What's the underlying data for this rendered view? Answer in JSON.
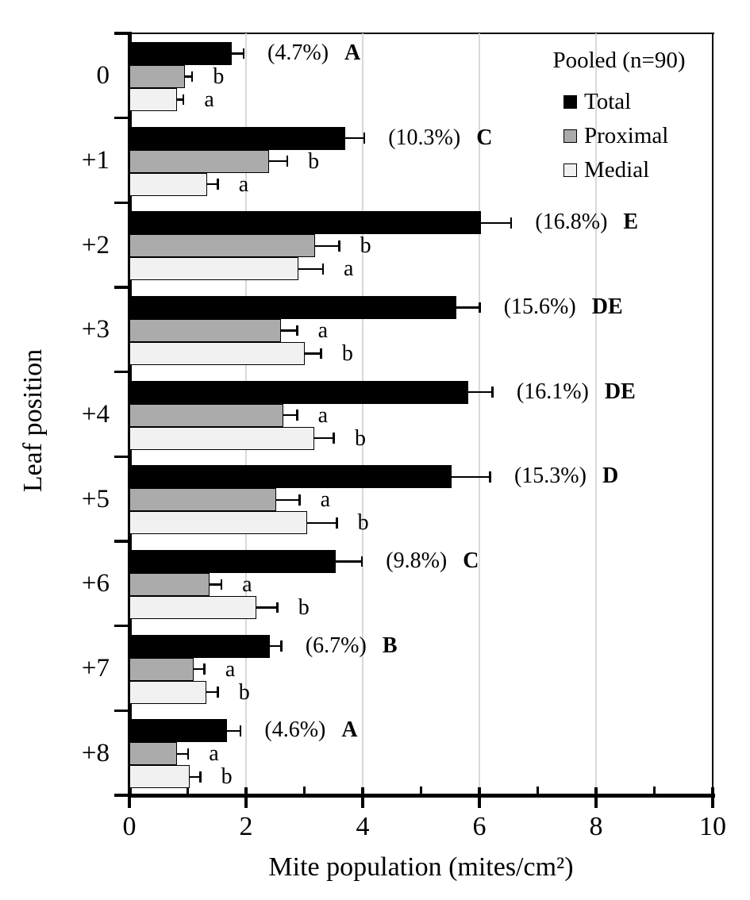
{
  "chart_data": {
    "type": "bar",
    "orientation": "horizontal",
    "xlabel": "Mite population (mites/cm²)",
    "ylabel": "Leaf position",
    "xlim": [
      0,
      10
    ],
    "xticks_major": [
      0,
      2,
      4,
      6,
      8,
      10
    ],
    "xtick_labels": [
      "0",
      "2",
      "4",
      "6",
      "8",
      "10"
    ],
    "xticks_minor": [
      1,
      3,
      5,
      7,
      9
    ],
    "gridlines_x": [
      2,
      4,
      6,
      8
    ],
    "grid_color": "#d9d9d9",
    "legend": {
      "title": "Pooled (n=90)",
      "position": "top-right",
      "entries": [
        {
          "label": "Total",
          "color": "#000000"
        },
        {
          "label": "Proximal",
          "color": "#ababab"
        },
        {
          "label": "Medial",
          "color": "#f1f1f1"
        }
      ]
    },
    "categories": [
      "0",
      "+1",
      "+2",
      "+3",
      "+4",
      "+5",
      "+6",
      "+7",
      "+8"
    ],
    "groups": [
      {
        "category": "0",
        "pct": "(4.7%)",
        "group_letter": "A",
        "bars": [
          {
            "series": "Total",
            "value": 1.76,
            "err": 0.2,
            "letter": ""
          },
          {
            "series": "Proximal",
            "value": 0.95,
            "err": 0.13,
            "letter": "b"
          },
          {
            "series": "Medial",
            "value": 0.82,
            "err": 0.11,
            "letter": "a"
          }
        ]
      },
      {
        "category": "+1",
        "pct": "(10.3%)",
        "group_letter": "C",
        "bars": [
          {
            "series": "Total",
            "value": 3.7,
            "err": 0.33,
            "letter": ""
          },
          {
            "series": "Proximal",
            "value": 2.4,
            "err": 0.31,
            "letter": "b"
          },
          {
            "series": "Medial",
            "value": 1.33,
            "err": 0.19,
            "letter": "a"
          }
        ]
      },
      {
        "category": "+2",
        "pct": "(16.8%)",
        "group_letter": "E",
        "bars": [
          {
            "series": "Total",
            "value": 6.03,
            "err": 0.52,
            "letter": ""
          },
          {
            "series": "Proximal",
            "value": 3.19,
            "err": 0.41,
            "letter": "b"
          },
          {
            "series": "Medial",
            "value": 2.9,
            "err": 0.42,
            "letter": "a"
          }
        ]
      },
      {
        "category": "+3",
        "pct": "(15.6%)",
        "group_letter": "DE",
        "bars": [
          {
            "series": "Total",
            "value": 5.61,
            "err": 0.4,
            "letter": ""
          },
          {
            "series": "Proximal",
            "value": 2.6,
            "err": 0.28,
            "letter": "a"
          },
          {
            "series": "Medial",
            "value": 3.0,
            "err": 0.29,
            "letter": "b"
          }
        ]
      },
      {
        "category": "+4",
        "pct": "(16.1%)",
        "group_letter": "DE",
        "bars": [
          {
            "series": "Total",
            "value": 5.81,
            "err": 0.42,
            "letter": ""
          },
          {
            "series": "Proximal",
            "value": 2.64,
            "err": 0.24,
            "letter": "a"
          },
          {
            "series": "Medial",
            "value": 3.17,
            "err": 0.34,
            "letter": "b"
          }
        ]
      },
      {
        "category": "+5",
        "pct": "(15.3%)",
        "group_letter": "D",
        "bars": [
          {
            "series": "Total",
            "value": 5.52,
            "err": 0.67,
            "letter": ""
          },
          {
            "series": "Proximal",
            "value": 2.52,
            "err": 0.4,
            "letter": "a"
          },
          {
            "series": "Medial",
            "value": 3.05,
            "err": 0.51,
            "letter": "b"
          }
        ]
      },
      {
        "category": "+6",
        "pct": "(9.8%)",
        "group_letter": "C",
        "bars": [
          {
            "series": "Total",
            "value": 3.54,
            "err": 0.45,
            "letter": ""
          },
          {
            "series": "Proximal",
            "value": 1.38,
            "err": 0.2,
            "letter": "a"
          },
          {
            "series": "Medial",
            "value": 2.18,
            "err": 0.36,
            "letter": "b"
          }
        ]
      },
      {
        "category": "+7",
        "pct": "(6.7%)",
        "group_letter": "B",
        "bars": [
          {
            "series": "Total",
            "value": 2.41,
            "err": 0.2,
            "letter": ""
          },
          {
            "series": "Proximal",
            "value": 1.1,
            "err": 0.19,
            "letter": "a"
          },
          {
            "series": "Medial",
            "value": 1.32,
            "err": 0.2,
            "letter": "b"
          }
        ]
      },
      {
        "category": "+8",
        "pct": "(4.6%)",
        "group_letter": "A",
        "bars": [
          {
            "series": "Total",
            "value": 1.67,
            "err": 0.24,
            "letter": ""
          },
          {
            "series": "Proximal",
            "value": 0.82,
            "err": 0.19,
            "letter": "a"
          },
          {
            "series": "Medial",
            "value": 1.04,
            "err": 0.18,
            "letter": "b"
          }
        ]
      }
    ]
  }
}
